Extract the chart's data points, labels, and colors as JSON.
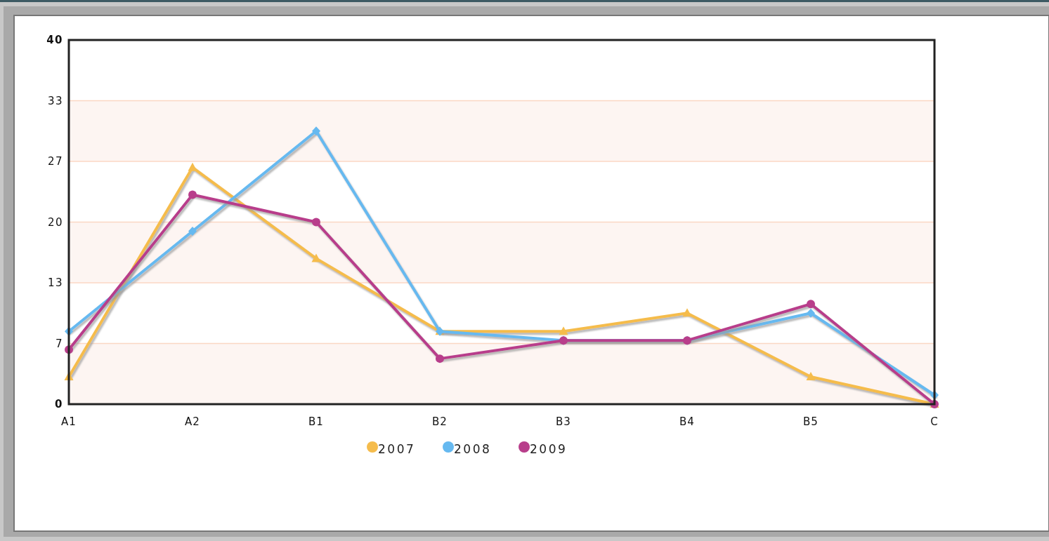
{
  "chart_data": {
    "type": "line",
    "categories": [
      "A1",
      "A2",
      "B1",
      "B2",
      "B3",
      "B4",
      "B5",
      "C"
    ],
    "series": [
      {
        "name": "2007",
        "color": "#f5bc4c",
        "marker": "triangle",
        "values": [
          3,
          26,
          16,
          8,
          8,
          10,
          3,
          0
        ]
      },
      {
        "name": "2008",
        "color": "#66b9f0",
        "marker": "diamond",
        "values": [
          8,
          19,
          30,
          8,
          7,
          7,
          10,
          1
        ]
      },
      {
        "name": "2009",
        "color": "#b83e8b",
        "marker": "circle",
        "values": [
          6,
          23,
          20,
          5,
          7,
          7,
          11,
          0
        ]
      }
    ],
    "ylim": [
      0,
      40
    ],
    "yticks": [
      0,
      {
        "value": 6.667,
        "label": "7"
      },
      {
        "value": 13.333,
        "label": "13"
      },
      20,
      {
        "value": 26.667,
        "label": "27"
      },
      {
        "value": 33.333,
        "label": "33"
      },
      40
    ],
    "grid": "y",
    "legend": "bottom",
    "line_style": "solid",
    "bands": [
      {
        "axis": "y",
        "from": 0,
        "to": 6.667,
        "color": "#fdf5f2"
      },
      {
        "axis": "y",
        "from": 13.333,
        "to": 20,
        "color": "#fdf5f2"
      },
      {
        "axis": "y",
        "from": 26.667,
        "to": 33.333,
        "color": "#fdf5f2"
      }
    ]
  }
}
